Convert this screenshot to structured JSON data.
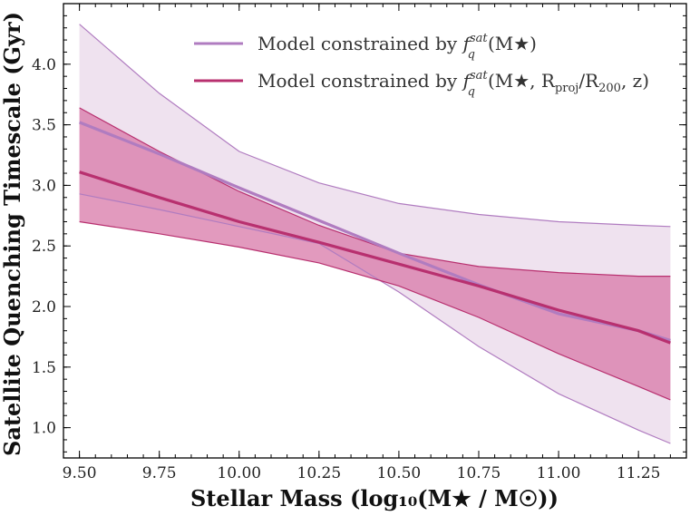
{
  "chart_data": {
    "type": "line",
    "title": "",
    "xlabel": "Stellar Mass (log₁₀(M★ / M☉))",
    "ylabel": "Satellite Quenching Timescale (Gyr)",
    "xlim": [
      9.45,
      11.4
    ],
    "ylim": [
      0.75,
      4.5
    ],
    "xticks": [
      9.5,
      9.75,
      10.0,
      10.25,
      10.5,
      10.75,
      11.0,
      11.25
    ],
    "xtick_labels": [
      "9.50",
      "9.75",
      "10.00",
      "10.25",
      "10.50",
      "10.75",
      "11.00",
      "11.25"
    ],
    "yticks": [
      1.0,
      1.5,
      2.0,
      2.5,
      3.0,
      3.5,
      4.0
    ],
    "ytick_labels": [
      "1.0",
      "1.5",
      "2.0",
      "2.5",
      "3.0",
      "3.5",
      "4.0"
    ],
    "grid": false,
    "legend_position": "top-right",
    "series": [
      {
        "name": "Model constrained by f_q^sat(M★)",
        "color": "#b07cc0",
        "band_fill": "#efe2ef",
        "x": [
          9.5,
          9.75,
          10.0,
          10.25,
          10.5,
          10.75,
          11.0,
          11.25,
          11.35
        ],
        "median": [
          3.52,
          3.26,
          2.98,
          2.71,
          2.44,
          2.18,
          1.94,
          1.8,
          1.72
        ],
        "upper": [
          4.33,
          3.76,
          3.28,
          3.02,
          2.85,
          2.76,
          2.7,
          2.67,
          2.66
        ],
        "lower": [
          2.93,
          2.8,
          2.66,
          2.52,
          2.12,
          1.67,
          1.28,
          0.98,
          0.87
        ]
      },
      {
        "name": "Model constrained by f_q^sat(M★, R_proj/R_200, z)",
        "color": "#b8306f",
        "band_fill": "#d878a8",
        "x": [
          9.5,
          9.75,
          10.0,
          10.25,
          10.5,
          10.75,
          11.0,
          11.25,
          11.35
        ],
        "median": [
          3.11,
          2.9,
          2.7,
          2.53,
          2.35,
          2.17,
          1.97,
          1.8,
          1.7
        ],
        "upper": [
          3.64,
          3.28,
          2.95,
          2.67,
          2.44,
          2.33,
          2.28,
          2.25,
          2.25
        ],
        "lower": [
          2.7,
          2.6,
          2.49,
          2.36,
          2.17,
          1.91,
          1.61,
          1.34,
          1.23
        ]
      }
    ]
  },
  "legend": {
    "item1": {
      "prefix": "Model constrained by ",
      "f": "f",
      "sup": "sat",
      "sub": "q",
      "args": "(M★)"
    },
    "item2": {
      "prefix": "Model constrained by ",
      "f": "f",
      "sup": "sat",
      "sub": "q",
      "args_pre": "(M★, R",
      "rsub1": "proj",
      "mid": "/R",
      "rsub2": "200",
      "args_post": ", z)"
    }
  }
}
